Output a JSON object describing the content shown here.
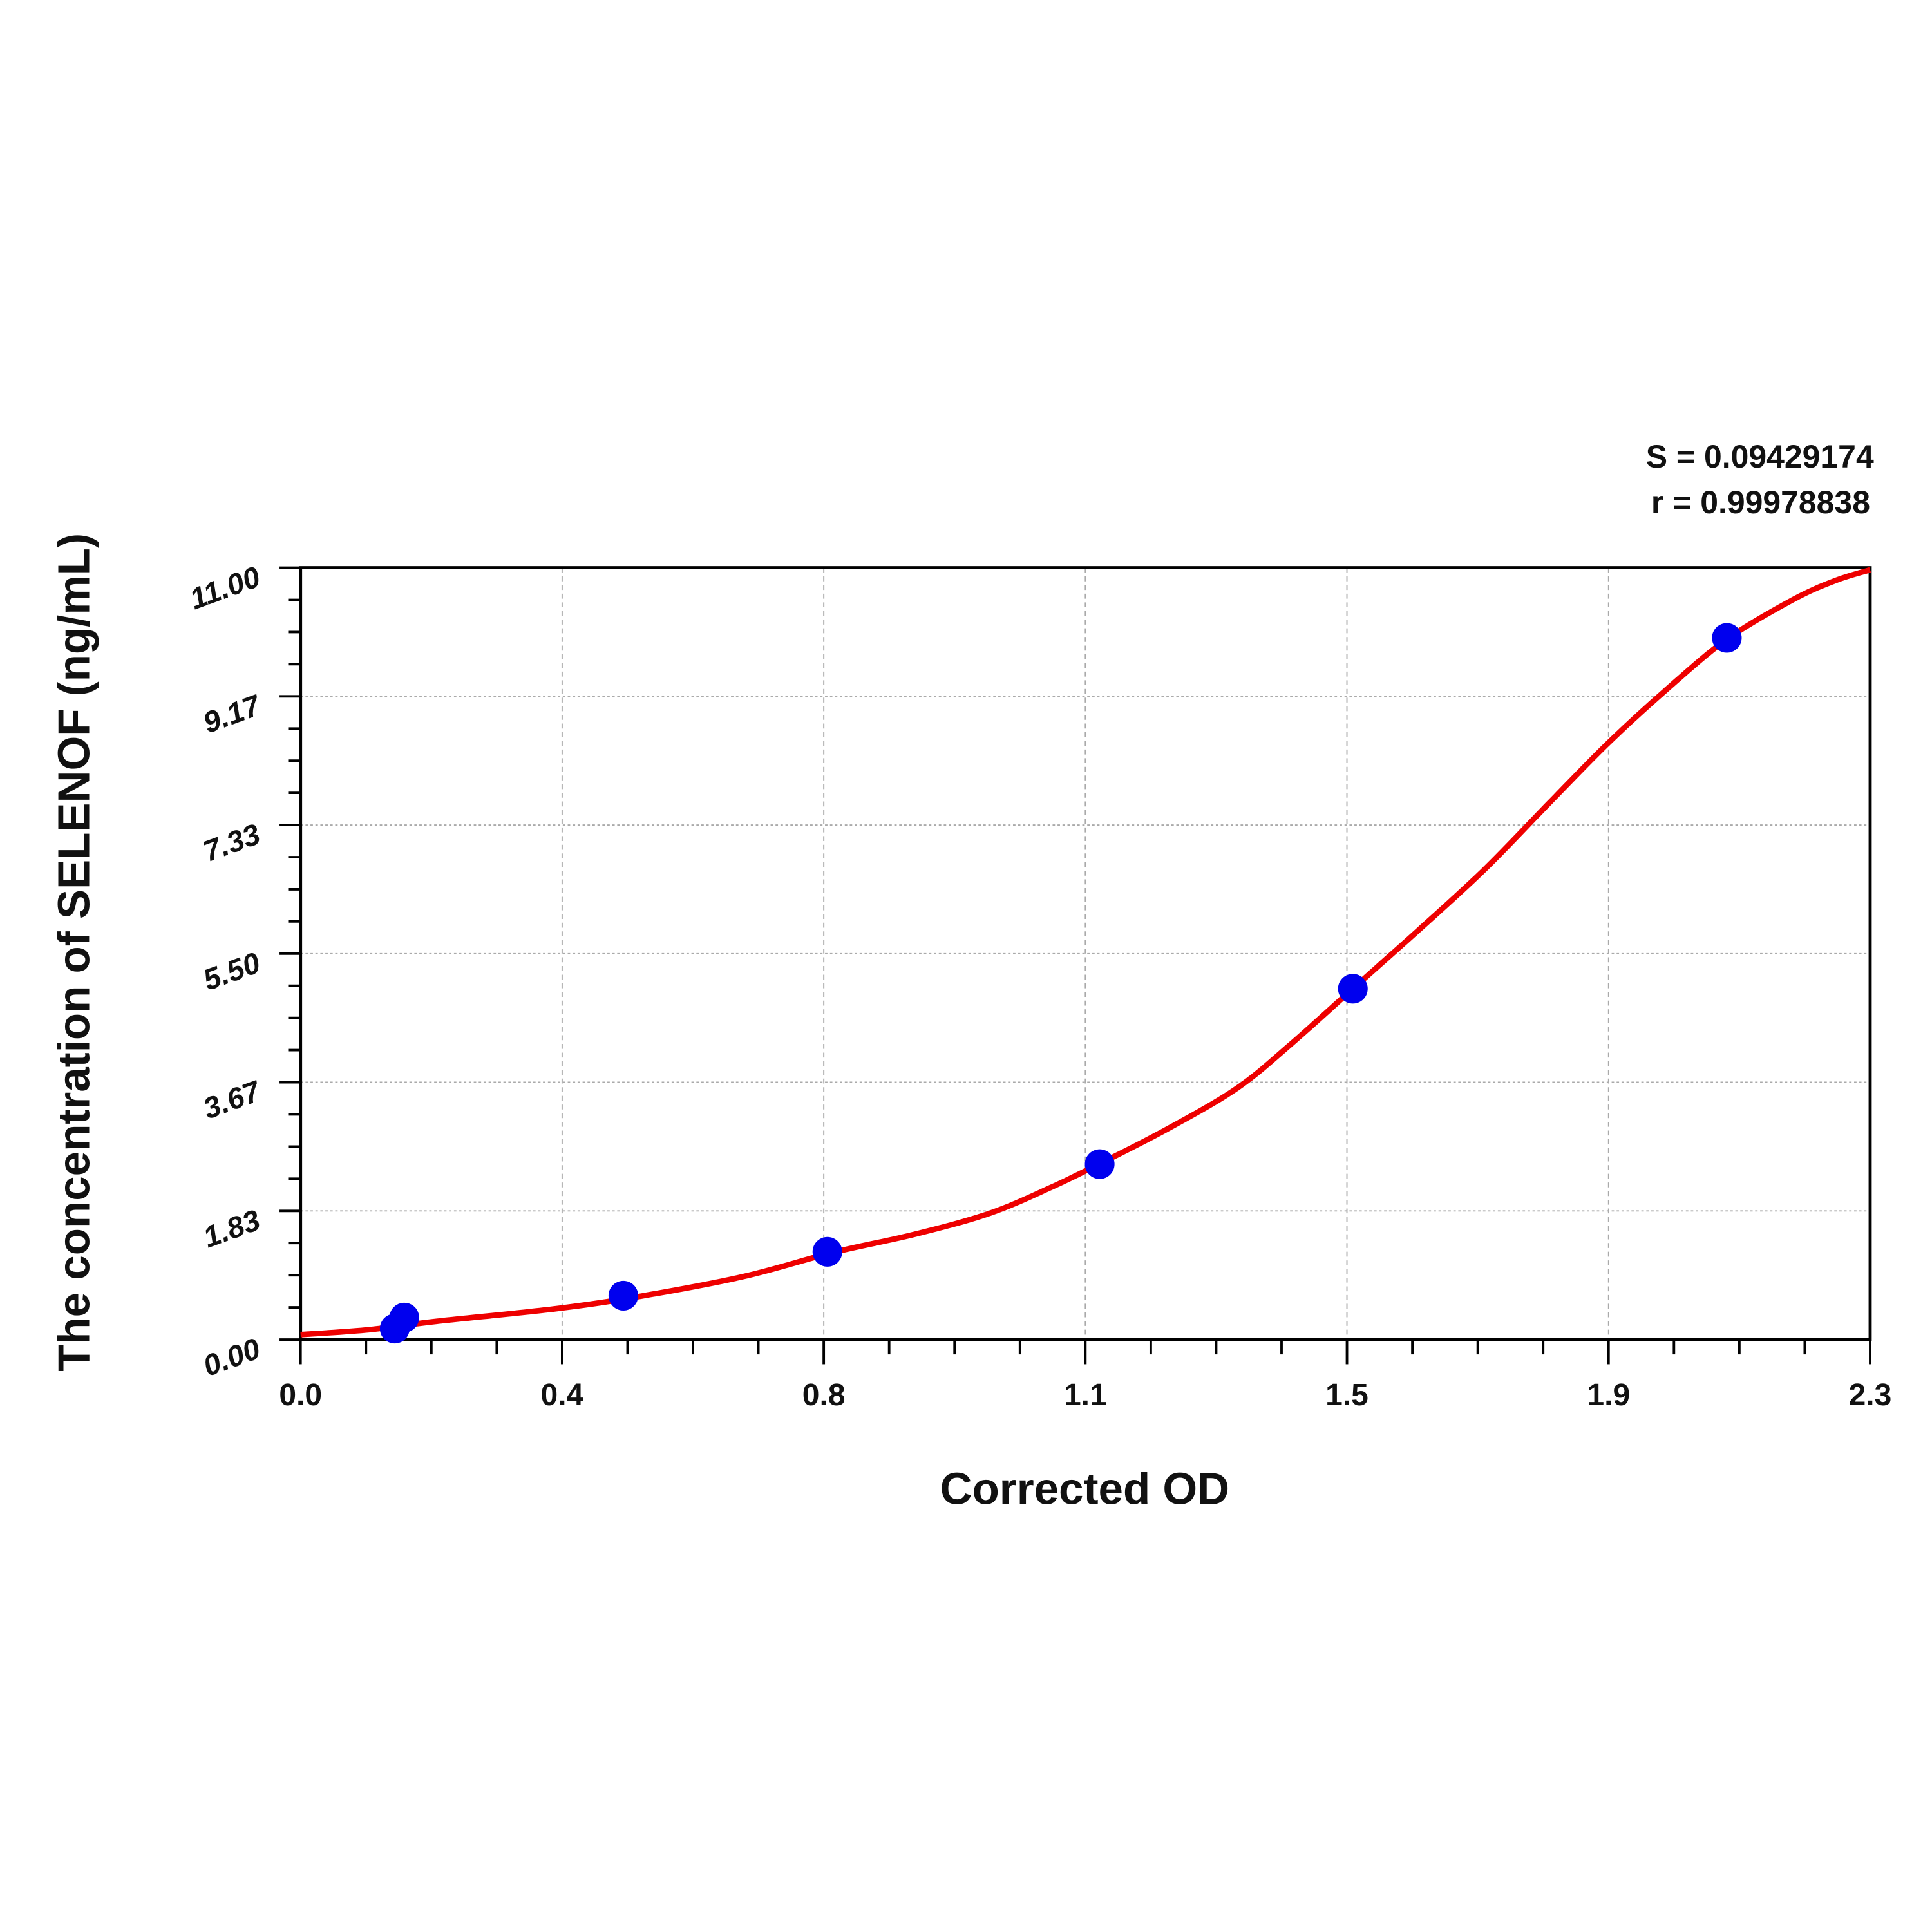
{
  "chart_data": {
    "type": "scatter",
    "xlabel": "Corrected OD",
    "ylabel": "The concentration of SELENOF (ng/mL)",
    "xlim": [
      0,
      2.3
    ],
    "ylim": [
      0,
      11
    ],
    "x_ticks": [
      {
        "value": 0,
        "label": "0.0"
      },
      {
        "value": 0.3833,
        "label": "0.4"
      },
      {
        "value": 0.7667,
        "label": "0.8"
      },
      {
        "value": 1.15,
        "label": "1.1"
      },
      {
        "value": 1.5333,
        "label": "1.5"
      },
      {
        "value": 1.9167,
        "label": "1.9"
      },
      {
        "value": 2.3,
        "label": "2.3"
      }
    ],
    "y_ticks": [
      {
        "value": 0,
        "label": "0.00"
      },
      {
        "value": 1.833,
        "label": "1.83"
      },
      {
        "value": 3.667,
        "label": "3.67"
      },
      {
        "value": 5.5,
        "label": "5.50"
      },
      {
        "value": 7.333,
        "label": "7.33"
      },
      {
        "value": 9.167,
        "label": "9.17"
      },
      {
        "value": 11,
        "label": "11.00"
      }
    ],
    "grid": true,
    "stats": {
      "s": "S = 0.09429174",
      "r": "r = 0.99978838"
    },
    "points": {
      "color": "#0000ee",
      "x": [
        0.138,
        0.152,
        0.473,
        0.772,
        1.171,
        1.542,
        2.09
      ],
      "y": [
        0.156,
        0.313,
        0.625,
        1.25,
        2.5,
        5.0,
        10.0
      ]
    },
    "fit_curve": {
      "color": "#ee0000",
      "x": [
        0,
        0.1,
        0.2,
        0.375,
        0.5,
        0.65,
        0.78,
        0.9,
        1.01,
        1.1,
        1.17,
        1.27,
        1.372,
        1.45,
        1.542,
        1.64,
        1.735,
        1.83,
        1.916,
        2.0,
        2.09,
        2.188,
        2.25,
        2.3
      ],
      "y": [
        0.07,
        0.14,
        0.26,
        0.44,
        0.62,
        0.9,
        1.24,
        1.5,
        1.8,
        2.17,
        2.5,
        3.0,
        3.58,
        4.2,
        5.0,
        5.85,
        6.7,
        7.65,
        8.5,
        9.25,
        9.98,
        10.55,
        10.82,
        10.97
      ]
    }
  }
}
